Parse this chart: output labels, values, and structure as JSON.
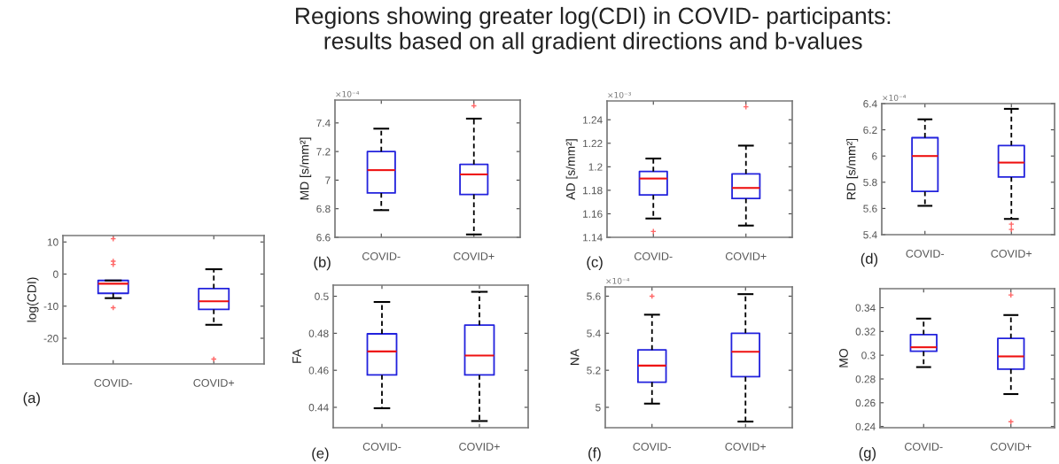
{
  "chart_data": [
    {
      "type": "box",
      "ylabel": "log(CDI)",
      "categories": [
        "COVID-",
        "COVID+"
      ],
      "ylim": [
        -28,
        12
      ],
      "yticks": [
        -20,
        -10,
        0,
        10
      ],
      "annotations": [
        "(a)"
      ],
      "boxes": [
        {
          "low": -7.5,
          "q1": -6,
          "median": -3,
          "q3": -2,
          "high": -2,
          "outliers": [
            11,
            4,
            3,
            -10.5
          ]
        },
        {
          "low": -15.8,
          "q1": -11,
          "median": -8.5,
          "q3": -4.5,
          "high": 1.5,
          "outliers": [
            -26.5
          ]
        }
      ]
    },
    {
      "type": "box",
      "ylabel": "MD [s/mm²]",
      "categories": [
        "COVID-",
        "COVID+"
      ],
      "ylim": [
        6.6,
        7.56
      ],
      "yticks": [
        6.6,
        6.8,
        {
          "value": 7.0,
          "label": "7"
        },
        7.2,
        7.4
      ],
      "annotations": [
        "(b)",
        "×10⁻⁴"
      ],
      "boxes": [
        {
          "low": 6.79,
          "q1": 6.91,
          "median": 7.07,
          "q3": 7.2,
          "high": 7.36
        },
        {
          "low": 6.62,
          "q1": 6.9,
          "median": 7.04,
          "q3": 7.11,
          "high": 7.43,
          "outliers": [
            7.52
          ]
        }
      ]
    },
    {
      "type": "box",
      "title": "Regions showing greater log(CDI) in COVID- participants:\nresults based on all gradient directions and b-values",
      "ylabel": "AD [s/mm²]",
      "categories": [
        "COVID-",
        "COVID+"
      ],
      "ylim": [
        1.14,
        1.256
      ],
      "yticks": [
        1.14,
        1.16,
        1.18,
        {
          "value": 1.2,
          "label": "1.2"
        },
        1.22,
        1.24
      ],
      "annotations": [
        "(c)",
        "×10⁻³"
      ],
      "boxes": [
        {
          "low": 1.156,
          "q1": 1.176,
          "median": 1.19,
          "q3": 1.196,
          "high": 1.207,
          "outliers": [
            1.145
          ]
        },
        {
          "low": 1.15,
          "q1": 1.173,
          "median": 1.182,
          "q3": 1.194,
          "high": 1.218,
          "outliers": [
            1.251
          ]
        }
      ]
    },
    {
      "type": "box",
      "ylabel": "RD [s/mm²]",
      "categories": [
        "COVID-",
        "COVID+"
      ],
      "ylim": [
        5.4,
        6.4
      ],
      "yticks": [
        5.4,
        5.6,
        5.8,
        {
          "value": 6.0,
          "label": "6"
        },
        6.2,
        6.4
      ],
      "annotations": [
        "(d)",
        "×10⁻⁴"
      ],
      "boxes": [
        {
          "low": 5.62,
          "q1": 5.73,
          "median": 6.0,
          "q3": 6.14,
          "high": 6.28
        },
        {
          "low": 5.52,
          "q1": 5.84,
          "median": 5.95,
          "q3": 6.08,
          "high": 6.36,
          "outliers": [
            5.48,
            5.44
          ]
        }
      ]
    },
    {
      "type": "box",
      "ylabel": "FA",
      "categories": [
        "COVID-",
        "COVID+"
      ],
      "ylim": [
        0.429,
        0.506
      ],
      "yticks": [
        0.44,
        0.46,
        0.48,
        {
          "value": 0.5,
          "label": "0.5"
        }
      ],
      "annotations": [
        "(e)"
      ],
      "boxes": [
        {
          "low": 0.4395,
          "q1": 0.4575,
          "median": 0.4702,
          "q3": 0.4797,
          "high": 0.4969
        },
        {
          "low": 0.4326,
          "q1": 0.4575,
          "median": 0.468,
          "q3": 0.4844,
          "high": 0.5024
        }
      ]
    },
    {
      "type": "box",
      "ylabel": "NA",
      "categories": [
        "COVID-",
        "COVID+"
      ],
      "ylim": [
        4.89,
        5.65
      ],
      "yticks": [
        {
          "value": 5.0,
          "label": "5"
        },
        5.2,
        5.4,
        5.6
      ],
      "annotations": [
        "(f)",
        "×10⁻⁴"
      ],
      "boxes": [
        {
          "low": 5.02,
          "q1": 5.136,
          "median": 5.225,
          "q3": 5.31,
          "high": 5.5,
          "outliers": [
            5.6
          ]
        },
        {
          "low": 4.923,
          "q1": 5.165,
          "median": 5.3,
          "q3": 5.4,
          "high": 5.611
        }
      ]
    },
    {
      "type": "box",
      "ylabel": "MO",
      "categories": [
        "COVID-",
        "COVID+"
      ],
      "ylim": [
        0.239,
        0.356
      ],
      "yticks": [
        0.24,
        0.26,
        0.28,
        {
          "value": 0.3,
          "label": "0.3"
        },
        0.32,
        0.34
      ],
      "annotations": [
        "(g)"
      ],
      "boxes": [
        {
          "low": 0.29,
          "q1": 0.3033,
          "median": 0.3067,
          "q3": 0.3174,
          "high": 0.3308
        },
        {
          "low": 0.2673,
          "q1": 0.2883,
          "median": 0.299,
          "q3": 0.3142,
          "high": 0.3338,
          "outliers": [
            0.3507,
            0.244
          ]
        }
      ]
    }
  ]
}
